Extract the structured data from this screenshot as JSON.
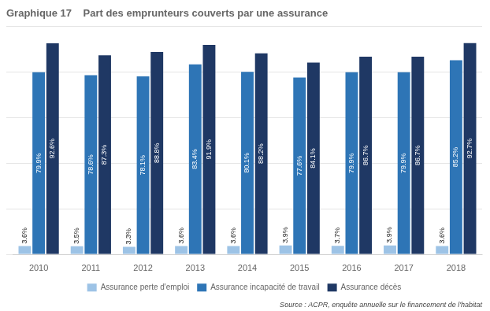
{
  "chart_data": {
    "type": "bar",
    "title": "Graphique 17    Part des emprunteurs couverts par une assurance",
    "categories": [
      "2010",
      "2011",
      "2012",
      "2013",
      "2014",
      "2015",
      "2016",
      "2017",
      "2018"
    ],
    "series": [
      {
        "name": "Assurance perte d'emploi",
        "color": "#9dc3e6",
        "values": [
          3.6,
          3.5,
          3.3,
          3.6,
          3.6,
          3.9,
          3.7,
          3.9,
          3.6
        ],
        "value_labels": [
          "3.6%",
          "3.5%",
          "3.3%",
          "3.6%",
          "3.6%",
          "3.9%",
          "3.7%",
          "3.9%",
          "3.6%"
        ]
      },
      {
        "name": "Assurance incapacité de travail",
        "color": "#2e75b6",
        "values": [
          79.9,
          78.6,
          78.1,
          83.4,
          80.1,
          77.6,
          79.9,
          79.9,
          85.2
        ],
        "value_labels": [
          "79.9%",
          "78.6%",
          "78.1%",
          "83.4%",
          "80.1%",
          "77.6%",
          "79.9%",
          "79.9%",
          "85.2%"
        ]
      },
      {
        "name": "Assurance décès",
        "color": "#1f3864",
        "values": [
          92.6,
          87.3,
          88.8,
          91.9,
          88.2,
          84.1,
          86.7,
          86.7,
          92.7
        ],
        "value_labels": [
          "92.6%",
          "87.3%",
          "88.8%",
          "91.9%",
          "88.2%",
          "84.1%",
          "86.7%",
          "86.7%",
          "92.7%"
        ]
      }
    ],
    "ylim": [
      0,
      100
    ],
    "yticks": [
      0,
      20,
      40,
      60,
      80,
      100
    ],
    "grid": true,
    "legend": "bottom",
    "tick_labels": "x",
    "data_labels": true,
    "annotations": [
      {
        "text": "Source : ACPR, enquête annuelle sur le financement de l'habitat"
      }
    ]
  }
}
